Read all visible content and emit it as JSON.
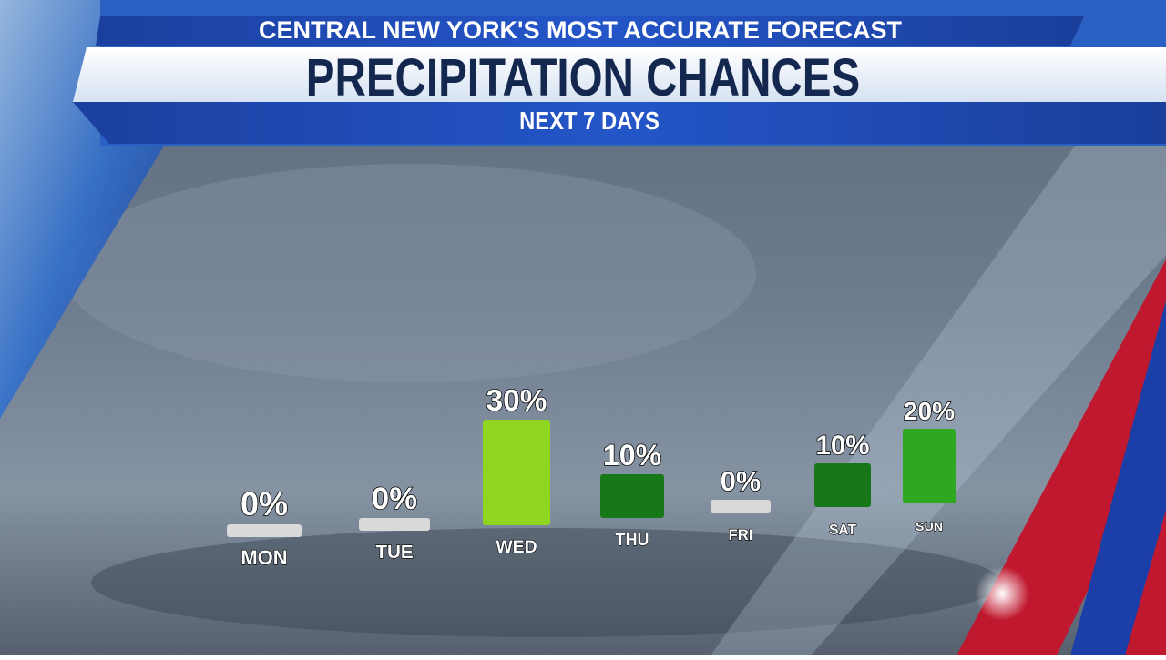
{
  "chart_data": {
    "type": "bar",
    "header": "CENTRAL NEW YORK'S MOST ACCURATE FORECAST",
    "title": "PRECIPITATION CHANCES",
    "subtitle": "NEXT 7 DAYS",
    "categories": [
      "MON",
      "TUE",
      "WED",
      "THU",
      "FRI",
      "SAT",
      "SUN"
    ],
    "values": [
      0,
      0,
      30,
      10,
      0,
      10,
      20
    ],
    "value_labels": [
      "0%",
      "0%",
      "30%",
      "10%",
      "0%",
      "10%",
      "20%"
    ],
    "colors": [
      "#d9d9d9",
      "#d9d9d9",
      "#8fd622",
      "#17781a",
      "#d9d9d9",
      "#17781a",
      "#2ea81e"
    ]
  }
}
